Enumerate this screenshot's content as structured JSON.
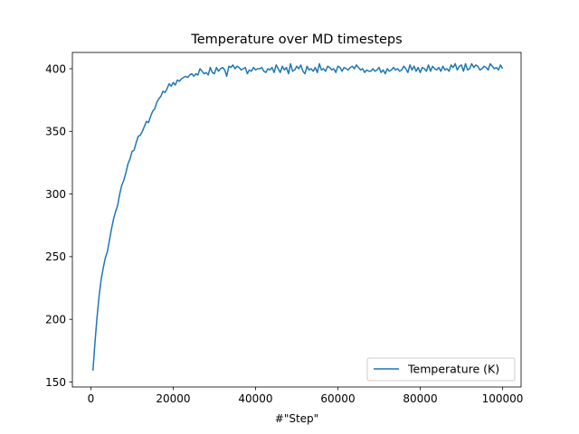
{
  "chart_data": {
    "type": "line",
    "title": "Temperature over MD timesteps",
    "xlabel": "#\"Step\"",
    "ylabel": "",
    "xlim": [
      -4500,
      104500
    ],
    "ylim": [
      146,
      413
    ],
    "xticks": [
      0,
      20000,
      40000,
      60000,
      80000,
      100000
    ],
    "xtick_labels": [
      "0",
      "20000",
      "40000",
      "60000",
      "80000",
      "100000"
    ],
    "yticks": [
      150,
      200,
      250,
      300,
      350,
      400
    ],
    "ytick_labels": [
      "150",
      "200",
      "250",
      "300",
      "350",
      "400"
    ],
    "grid": false,
    "legend_position": "lower right",
    "series": [
      {
        "name": "Temperature (K)",
        "color": "#1f77b4",
        "x": [
          500,
          1000,
          1500,
          2000,
          2500,
          3000,
          3500,
          4000,
          4500,
          5000,
          5500,
          6000,
          6500,
          7000,
          7500,
          8000,
          8500,
          9000,
          9500,
          10000,
          10500,
          11000,
          11500,
          12000,
          12500,
          13000,
          13500,
          14000,
          14500,
          15000,
          15500,
          16000,
          16500,
          17000,
          17500,
          18000,
          18500,
          19000,
          19500,
          20000,
          20500,
          21000,
          21500,
          22000,
          22500,
          23000,
          23500,
          24000,
          24500,
          25000,
          25500,
          26000,
          26500,
          27000,
          27500,
          28000,
          28500,
          29000,
          29500,
          30000,
          30500,
          31000,
          31500,
          32000,
          32500,
          33000,
          33500,
          34000,
          34500,
          35000,
          35500,
          36000,
          36500,
          37000,
          37500,
          38000,
          38500,
          39000,
          39500,
          40000,
          40500,
          41000,
          41500,
          42000,
          42500,
          43000,
          43500,
          44000,
          44500,
          45000,
          45500,
          46000,
          46500,
          47000,
          47500,
          48000,
          48500,
          49000,
          49500,
          50000,
          50500,
          51000,
          51500,
          52000,
          52500,
          53000,
          53500,
          54000,
          54500,
          55000,
          55500,
          56000,
          56500,
          57000,
          57500,
          58000,
          58500,
          59000,
          59500,
          60000,
          60500,
          61000,
          61500,
          62000,
          62500,
          63000,
          63500,
          64000,
          64500,
          65000,
          65500,
          66000,
          66500,
          67000,
          67500,
          68000,
          68500,
          69000,
          69500,
          70000,
          70500,
          71000,
          71500,
          72000,
          72500,
          73000,
          73500,
          74000,
          74500,
          75000,
          75500,
          76000,
          76500,
          77000,
          77500,
          78000,
          78500,
          79000,
          79500,
          80000,
          80500,
          81000,
          81500,
          82000,
          82500,
          83000,
          83500,
          84000,
          84500,
          85000,
          85500,
          86000,
          86500,
          87000,
          87500,
          88000,
          88500,
          89000,
          89500,
          90000,
          90500,
          91000,
          91500,
          92000,
          92500,
          93000,
          93500,
          94000,
          94500,
          95000,
          95500,
          96000,
          96500,
          97000,
          97500,
          98000,
          98500,
          99000,
          99500,
          100000
        ],
        "y": [
          159,
          182,
          202,
          219,
          232,
          241,
          249,
          254,
          263,
          272,
          280,
          286,
          291,
          300,
          307,
          311,
          317,
          324,
          328,
          334,
          335,
          341,
          346,
          347,
          350,
          354,
          358,
          357,
          362,
          366,
          368,
          373,
          376,
          378,
          382,
          381,
          384,
          388,
          386,
          389,
          387,
          391,
          390,
          392,
          393,
          394,
          393,
          395,
          396,
          394,
          396,
          395,
          400,
          398,
          396,
          397,
          395,
          401,
          397,
          396,
          401,
          398,
          400,
          401,
          399,
          394,
          402,
          401,
          403,
          400,
          402,
          401,
          399,
          400,
          401,
          396,
          399,
          398,
          401,
          399,
          400,
          400,
          401,
          398,
          397,
          400,
          399,
          401,
          397,
          403,
          400,
          397,
          402,
          399,
          401,
          396,
          404,
          398,
          399,
          402,
          400,
          403,
          398,
          396,
          402,
          399,
          400,
          398,
          401,
          397,
          404,
          399,
          400,
          398,
          402,
          401,
          399,
          400,
          397,
          402,
          401,
          398,
          401,
          400,
          399,
          401,
          402,
          400,
          403,
          401,
          399,
          400,
          397,
          399,
          398,
          398,
          400,
          398,
          399,
          401,
          397,
          399,
          396,
          400,
          398,
          399,
          401,
          399,
          400,
          398,
          399,
          402,
          400,
          397,
          403,
          399,
          402,
          398,
          401,
          397,
          401,
          400,
          398,
          403,
          398,
          402,
          400,
          399,
          401,
          398,
          402,
          399,
          400,
          398,
          403,
          401,
          404,
          399,
          402,
          403,
          398,
          404,
          399,
          400,
          404,
          401,
          403,
          402,
          399,
          400,
          402,
          401,
          399,
          404,
          402,
          400,
          401,
          399,
          403,
          400
        ]
      }
    ]
  }
}
